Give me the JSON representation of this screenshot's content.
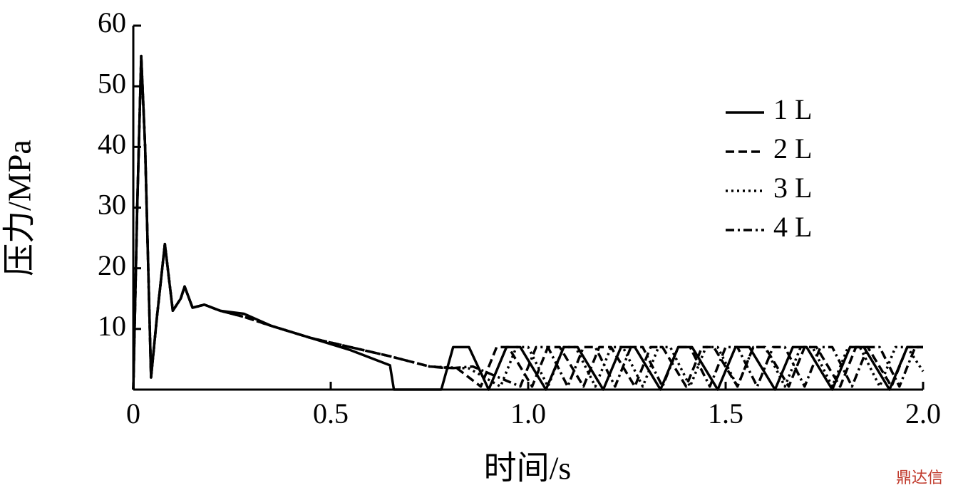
{
  "chart_data": {
    "type": "line",
    "xlabel": "时间/s",
    "ylabel": "压力/MPa",
    "xlim": [
      0,
      2
    ],
    "ylim": [
      0,
      60
    ],
    "xticks": [
      0,
      0.5,
      {
        "value": 1,
        "label": "1.0"
      },
      1.5,
      {
        "value": 2,
        "label": "2.0"
      }
    ],
    "yticks": [
      10,
      20,
      30,
      40,
      50,
      60
    ],
    "grid": false,
    "legend": "upper right",
    "watermark": "鼎达信",
    "series": [
      {
        "name": "1 L",
        "color": "#000000",
        "linestyle": "solid",
        "x": [
          0,
          0.01,
          0.02,
          0.03,
          0.045,
          0.06,
          0.08,
          0.1,
          0.12,
          0.13,
          0.15,
          0.18,
          0.22,
          0.28,
          0.35,
          0.45,
          0.55,
          0.65,
          0.66,
          0.78,
          0.81,
          0.85,
          0.9,
          0.945,
          0.98,
          1.045,
          1.09,
          1.125,
          1.19,
          1.235,
          1.27,
          1.335,
          1.38,
          1.415,
          1.48,
          1.525,
          1.56,
          1.625,
          1.67,
          1.705,
          1.77,
          1.815,
          1.85,
          1.915,
          1.96,
          2.0
        ],
        "values": [
          0,
          30,
          55,
          40,
          2,
          12,
          24,
          13,
          15,
          17,
          13.5,
          14,
          13,
          12.5,
          10.5,
          8.5,
          6.5,
          4,
          0,
          0,
          7,
          7,
          0,
          7,
          7,
          0,
          7,
          7,
          0,
          7,
          7,
          0,
          7,
          7,
          0,
          7,
          7,
          0,
          7,
          7,
          0,
          7,
          7,
          0,
          7,
          7
        ]
      },
      {
        "name": "2 L",
        "color": "#000000",
        "linestyle": "dashed",
        "x": [
          0,
          0.01,
          0.02,
          0.03,
          0.045,
          0.06,
          0.08,
          0.1,
          0.12,
          0.13,
          0.15,
          0.18,
          0.22,
          0.28,
          0.35,
          0.45,
          0.55,
          0.65,
          0.75,
          0.82,
          0.88,
          0.92,
          0.95,
          1.01,
          1.05,
          1.08,
          1.14,
          1.18,
          1.21,
          1.27,
          1.31,
          1.34,
          1.4,
          1.44,
          1.47,
          1.53,
          1.57,
          1.6,
          1.66,
          1.7,
          1.73,
          1.79,
          1.83,
          1.86,
          1.92,
          1.96,
          2.0
        ],
        "values": [
          0,
          30,
          55,
          40,
          2,
          12,
          24,
          13,
          15,
          17,
          13.5,
          14,
          13,
          12,
          10.5,
          8.5,
          7,
          5.5,
          3.8,
          3.5,
          0.5,
          7,
          7,
          0.5,
          7,
          7,
          0.5,
          7,
          7,
          0.5,
          7,
          7,
          0.5,
          7,
          7,
          0.5,
          7,
          7,
          0.5,
          7,
          7,
          0.5,
          7,
          7,
          0.5,
          7,
          7
        ]
      },
      {
        "name": "3 L",
        "color": "#000000",
        "linestyle": "dotted",
        "x": [
          0,
          0.01,
          0.02,
          0.03,
          0.045,
          0.06,
          0.08,
          0.1,
          0.12,
          0.13,
          0.15,
          0.18,
          0.22,
          0.28,
          0.35,
          0.45,
          0.55,
          0.65,
          0.75,
          0.85,
          0.93,
          0.97,
          1.0,
          1.05,
          1.09,
          1.12,
          1.17,
          1.21,
          1.24,
          1.29,
          1.33,
          1.36,
          1.41,
          1.45,
          1.48,
          1.53,
          1.57,
          1.6,
          1.65,
          1.69,
          1.72,
          1.77,
          1.81,
          1.84,
          1.89,
          1.93,
          1.96,
          2.0
        ],
        "values": [
          0,
          30,
          55,
          40,
          2,
          12,
          24,
          13,
          15,
          17,
          13.5,
          14,
          13,
          12,
          10.5,
          8.5,
          7,
          5.5,
          3.8,
          3.5,
          0.5,
          7,
          7,
          0.5,
          7,
          7,
          0.5,
          7,
          7,
          0.5,
          7,
          7,
          0.5,
          7,
          7,
          0.5,
          7,
          7,
          0.5,
          7,
          7,
          0.5,
          7,
          7,
          0.5,
          7,
          7,
          3
        ]
      },
      {
        "name": "4 L",
        "color": "#000000",
        "linestyle": "dashdot",
        "x": [
          0,
          0.01,
          0.02,
          0.03,
          0.045,
          0.06,
          0.08,
          0.1,
          0.12,
          0.13,
          0.15,
          0.18,
          0.22,
          0.28,
          0.35,
          0.45,
          0.55,
          0.65,
          0.75,
          0.8,
          0.86,
          0.98,
          1.02,
          1.05,
          1.1,
          1.14,
          1.17,
          1.22,
          1.26,
          1.29,
          1.34,
          1.38,
          1.41,
          1.46,
          1.5,
          1.53,
          1.58,
          1.62,
          1.65,
          1.7,
          1.74,
          1.77,
          1.82,
          1.86,
          1.89,
          1.94,
          1.98,
          2.0
        ],
        "values": [
          0,
          30,
          55,
          40,
          2,
          12,
          24,
          13,
          15,
          17,
          13.5,
          14,
          13,
          12,
          10.5,
          8.5,
          7,
          5.5,
          3.8,
          3.5,
          3.8,
          0.5,
          7,
          7,
          0.5,
          7,
          7,
          0.5,
          7,
          7,
          0.5,
          7,
          7,
          0.5,
          7,
          7,
          0.5,
          7,
          7,
          0.5,
          7,
          7,
          0.5,
          7,
          7,
          0.5,
          7,
          7
        ]
      }
    ]
  }
}
